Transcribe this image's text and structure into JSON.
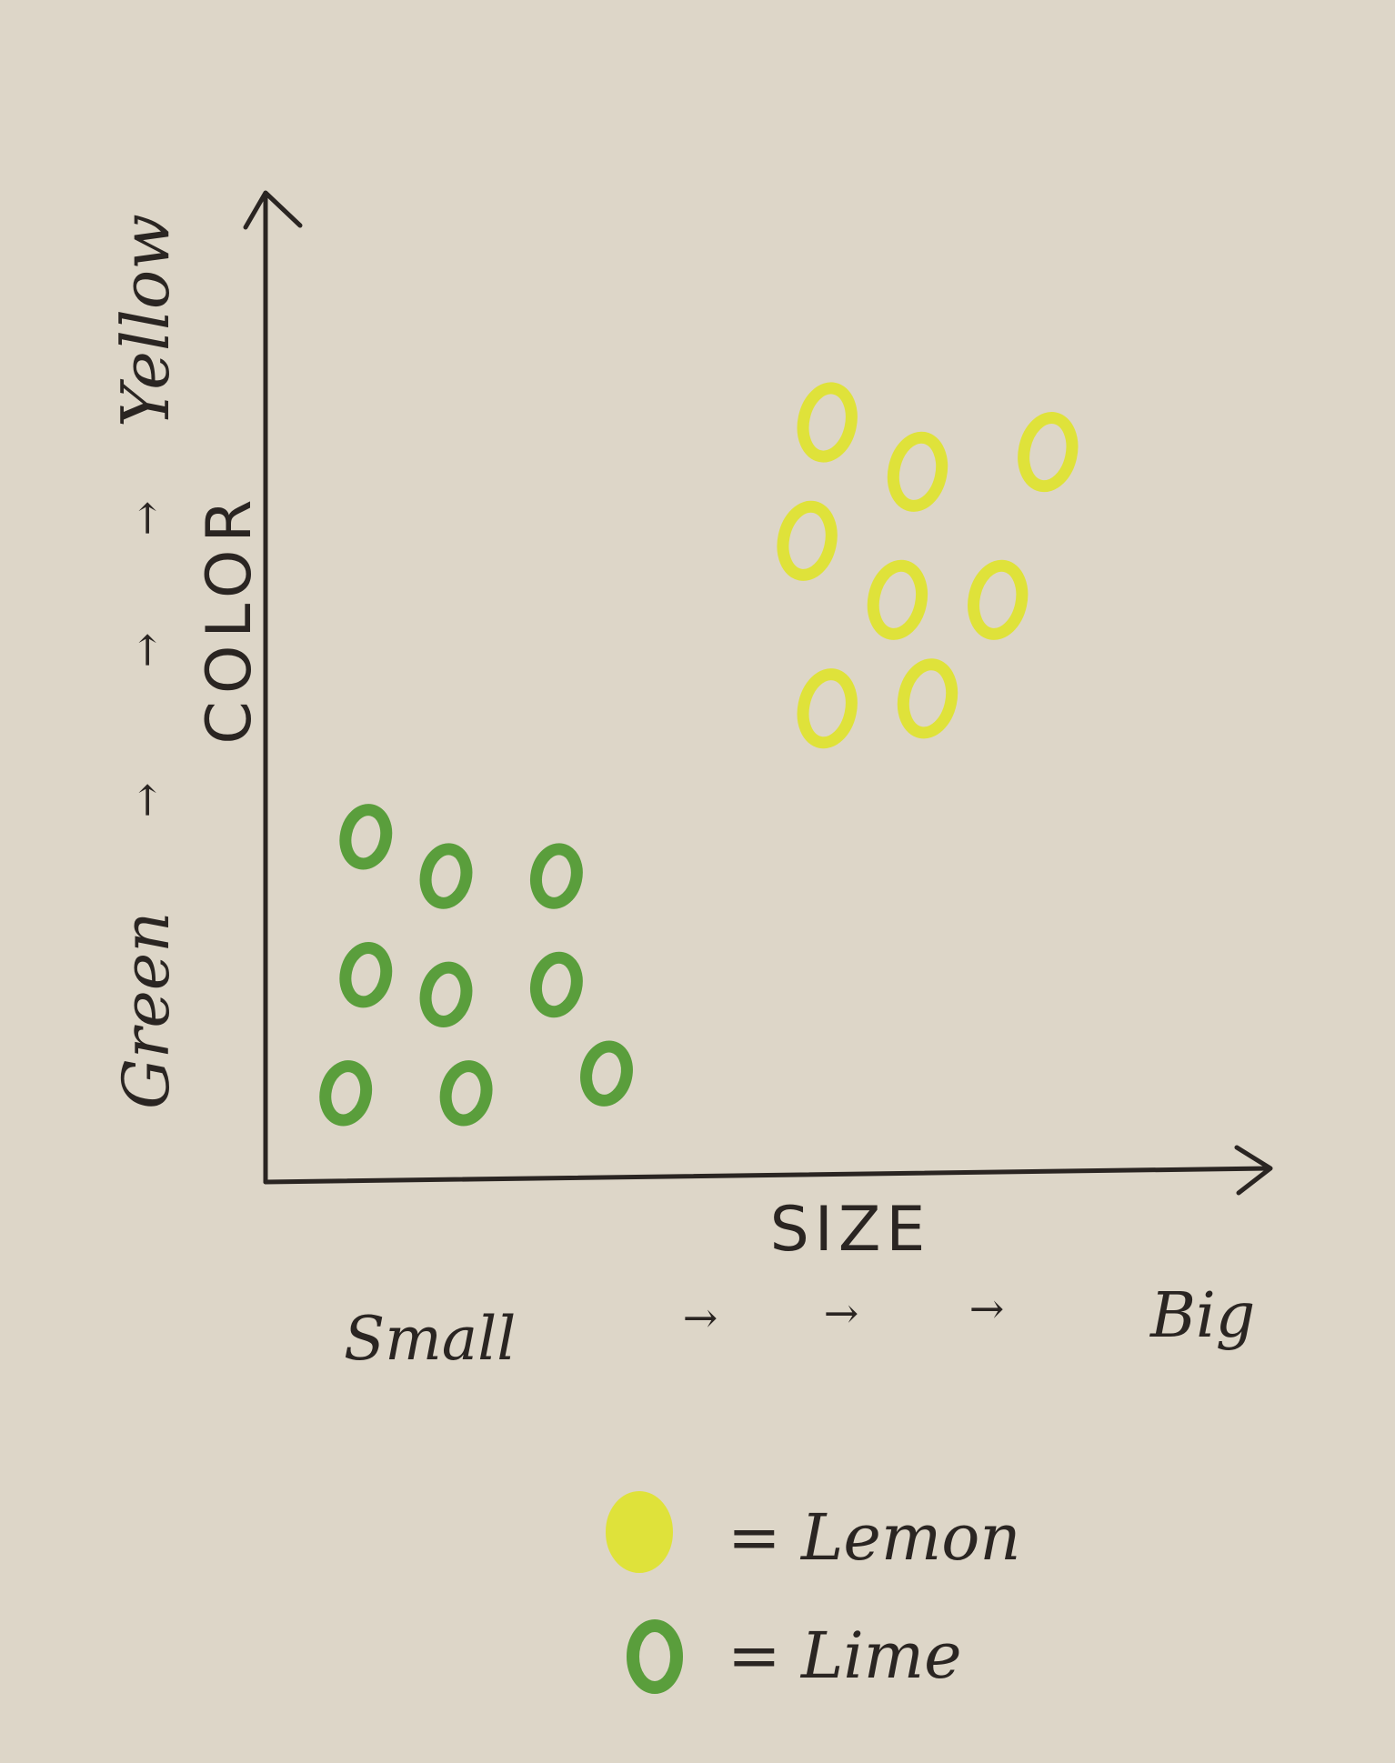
{
  "chart_data": {
    "type": "scatter",
    "xlabel": "SIZE",
    "ylabel": "COLOR",
    "x_scale_start": "Small",
    "x_scale_end": "Big",
    "y_scale_start": "Green",
    "y_scale_end": "Yellow",
    "x_arrows": [
      "→",
      "→",
      "→"
    ],
    "y_arrows": [
      "→",
      "→",
      "→"
    ],
    "xlim": [
      0,
      10
    ],
    "ylim": [
      0,
      10
    ],
    "grid": false,
    "legend_placement": "bottom-center",
    "series": [
      {
        "name": "Lemon",
        "legend_label": "= Lemon",
        "color": "#dfe23a",
        "points": [
          {
            "x": 5.6,
            "y": 7.7
          },
          {
            "x": 6.5,
            "y": 7.2
          },
          {
            "x": 7.8,
            "y": 7.4
          },
          {
            "x": 5.4,
            "y": 6.5
          },
          {
            "x": 6.3,
            "y": 5.9
          },
          {
            "x": 7.3,
            "y": 5.9
          },
          {
            "x": 5.6,
            "y": 4.8
          },
          {
            "x": 6.6,
            "y": 4.9
          }
        ]
      },
      {
        "name": "Lime",
        "legend_label": "= Lime",
        "color": "#5a9e3c",
        "points": [
          {
            "x": 1.0,
            "y": 3.5
          },
          {
            "x": 1.8,
            "y": 3.1
          },
          {
            "x": 2.9,
            "y": 3.1
          },
          {
            "x": 1.0,
            "y": 2.1
          },
          {
            "x": 1.8,
            "y": 1.9
          },
          {
            "x": 2.9,
            "y": 2.0
          },
          {
            "x": 0.8,
            "y": 0.9
          },
          {
            "x": 2.0,
            "y": 0.9
          },
          {
            "x": 3.4,
            "y": 1.1
          }
        ]
      }
    ]
  }
}
